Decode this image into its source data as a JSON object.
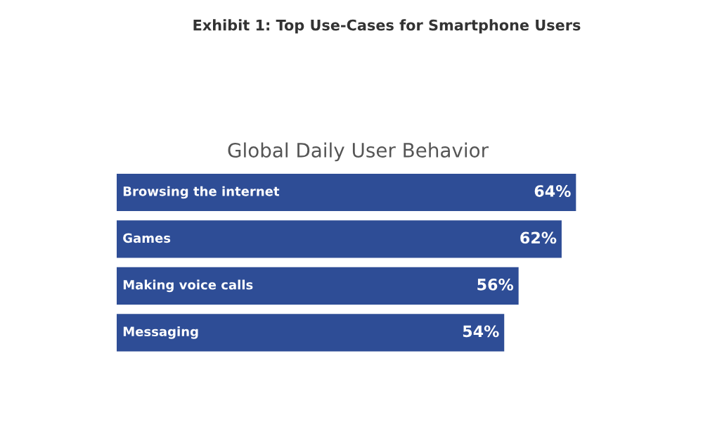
{
  "chart_data": {
    "type": "bar",
    "orientation": "horizontal",
    "title": "Exhibit 1: Top Use-Cases for Smartphone Users",
    "subtitle": "Global Daily User Behavior",
    "categories": [
      "Browsing the internet",
      "Games",
      "Making voice calls",
      "Messaging"
    ],
    "values": [
      64,
      62,
      56,
      54
    ],
    "value_labels": [
      "64%",
      "62%",
      "56%",
      "54%"
    ],
    "color": "#2e4d96"
  }
}
